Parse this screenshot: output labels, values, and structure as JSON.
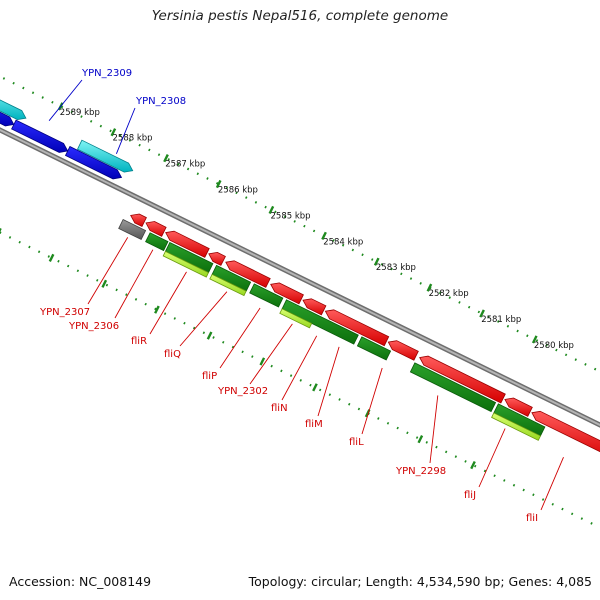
{
  "title": "Yersinia pestis Nepal516, complete genome",
  "footer": {
    "accession": "Accession: NC_008149",
    "info": "Topology: circular; Length: 4,534,590 bp; Genes: 4,085"
  },
  "colors": {
    "backbone": "#8a8a8a",
    "tick": "#1f8a1f",
    "forward_cds": "#00c8d2",
    "forward_gene": "#0000e0",
    "reverse_cds": "#ff0000",
    "reverse_gene_dark": "#138a13",
    "reverse_gene_light": "#b8f040",
    "pseudo": "#707070",
    "label_forward": "#0000c8",
    "label_reverse": "#d00000"
  },
  "ticks": [
    {
      "label": "2589 kbp"
    },
    {
      "label": "2588 kbp"
    },
    {
      "label": "2587 kbp"
    },
    {
      "label": "2586 kbp"
    },
    {
      "label": "2585 kbp"
    },
    {
      "label": "2584 kbp"
    },
    {
      "label": "2583 kbp"
    },
    {
      "label": "2582 kbp"
    },
    {
      "label": "2581 kbp"
    },
    {
      "label": "2580 kbp"
    }
  ],
  "genes": [
    {
      "label": "YPN_2309",
      "strand": "forward"
    },
    {
      "label": "YPN_2308",
      "strand": "forward"
    },
    {
      "label": "YPN_2307",
      "strand": "reverse"
    },
    {
      "label": "YPN_2306",
      "strand": "reverse"
    },
    {
      "label": "fliR",
      "strand": "reverse"
    },
    {
      "label": "fliQ",
      "strand": "reverse"
    },
    {
      "label": "fliP",
      "strand": "reverse"
    },
    {
      "label": "YPN_2302",
      "strand": "reverse"
    },
    {
      "label": "fliN",
      "strand": "reverse"
    },
    {
      "label": "fliM",
      "strand": "reverse"
    },
    {
      "label": "fliL",
      "strand": "reverse"
    },
    {
      "label": "YPN_2298",
      "strand": "reverse"
    },
    {
      "label": "fliJ",
      "strand": "reverse"
    },
    {
      "label": "fliI",
      "strand": "reverse"
    }
  ]
}
